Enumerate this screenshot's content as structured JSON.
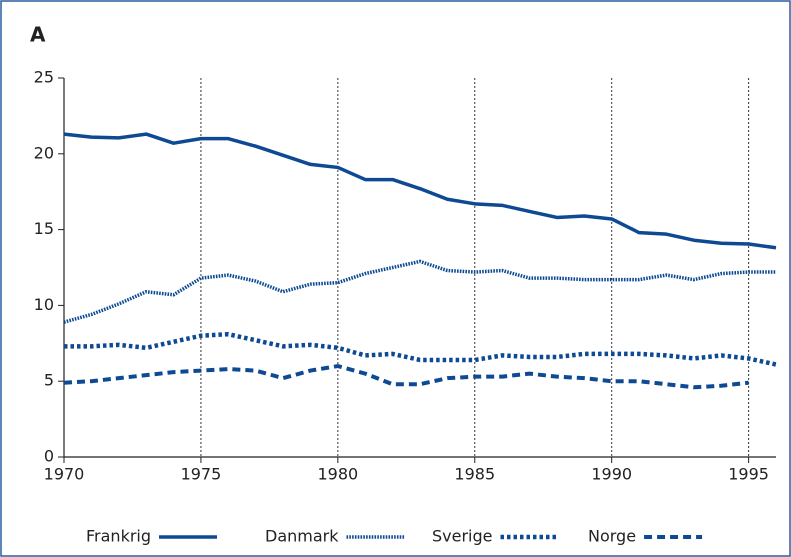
{
  "chart_data": {
    "type": "line",
    "title": "A",
    "x": [
      1970,
      1971,
      1972,
      1973,
      1974,
      1975,
      1976,
      1977,
      1978,
      1979,
      1980,
      1981,
      1982,
      1983,
      1984,
      1985,
      1986,
      1987,
      1988,
      1989,
      1990,
      1991,
      1992,
      1993,
      1994,
      1995,
      1996
    ],
    "series": [
      {
        "name": "Frankrig",
        "color": "#0d4a93",
        "line_style": "solid",
        "values": [
          21.3,
          21.1,
          21.05,
          21.3,
          20.7,
          21.0,
          21.0,
          20.5,
          19.9,
          19.3,
          19.1,
          18.3,
          18.3,
          17.7,
          17.0,
          16.7,
          16.6,
          16.2,
          15.8,
          15.9,
          15.7,
          14.8,
          14.7,
          14.3,
          14.1,
          14.05,
          13.8
        ]
      },
      {
        "name": "Danmark",
        "color": "#0d4a93",
        "line_style": "dotted",
        "values": [
          8.9,
          9.4,
          10.1,
          10.9,
          10.7,
          11.8,
          12.0,
          11.6,
          10.9,
          11.4,
          11.5,
          12.1,
          12.5,
          12.9,
          12.3,
          12.2,
          12.3,
          11.8,
          11.8,
          11.7,
          11.7,
          11.7,
          12.0,
          11.7,
          12.1,
          12.2,
          12.2
        ]
      },
      {
        "name": "Sverige",
        "color": "#0d4a93",
        "line_style": "short-dash",
        "values": [
          7.3,
          7.3,
          7.4,
          7.2,
          7.6,
          8.0,
          8.1,
          7.7,
          7.3,
          7.4,
          7.2,
          6.7,
          6.8,
          6.4,
          6.4,
          6.4,
          6.7,
          6.6,
          6.6,
          6.8,
          6.8,
          6.8,
          6.7,
          6.5,
          6.7,
          6.5,
          6.1
        ]
      },
      {
        "name": "Norge",
        "color": "#0d4a93",
        "line_style": "dash",
        "values": [
          4.9,
          5.0,
          5.2,
          5.4,
          5.6,
          5.7,
          5.8,
          5.7,
          5.2,
          5.7,
          6.0,
          5.5,
          4.8,
          4.8,
          5.2,
          5.3,
          5.3,
          5.5,
          5.3,
          5.2,
          5.0,
          5.0,
          4.8,
          4.6,
          4.7,
          4.9,
          null
        ]
      }
    ],
    "xlim": [
      1970,
      1996
    ],
    "xticks": [
      1970,
      1975,
      1980,
      1985,
      1990,
      1995
    ],
    "ylim": [
      0,
      25
    ],
    "yticks": [
      0,
      5,
      10,
      15,
      20,
      25
    ],
    "grid": "x"
  }
}
